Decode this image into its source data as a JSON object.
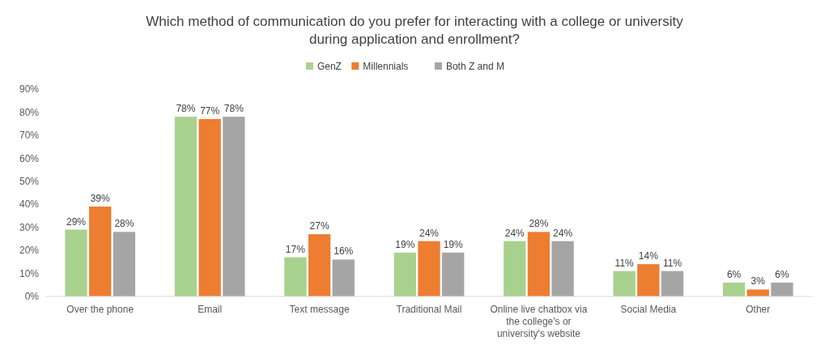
{
  "chart_data": {
    "type": "bar",
    "title": "Which method of communication do you prefer for interacting with a college or university during application and enrollment?",
    "categories": [
      "Over the phone",
      "Email",
      "Text message",
      "Traditional Mail",
      "Online live chatbox via the college's or university's website",
      "Social Media",
      "Other"
    ],
    "series": [
      {
        "name": "GenZ",
        "color": "#a9d18e",
        "values": [
          29,
          78,
          17,
          19,
          24,
          11,
          6
        ],
        "value_labels": [
          "29%",
          "78%",
          "17%",
          "19%",
          "24%",
          "11%",
          "6%"
        ]
      },
      {
        "name": "Millennials",
        "color": "#ed7d31",
        "values": [
          39,
          77,
          27,
          24,
          28,
          14,
          3
        ],
        "value_labels": [
          "39%",
          "77%",
          "27%",
          "24%",
          "28%",
          "14%",
          "3%"
        ]
      },
      {
        "name": "Both Z and M",
        "color": "#a5a5a5",
        "values": [
          28,
          78,
          16,
          19,
          24,
          11,
          6
        ],
        "value_labels": [
          "28%",
          "78%",
          "16%",
          "19%",
          "24%",
          "11%",
          "6%"
        ]
      }
    ],
    "ylim": [
      0,
      90
    ],
    "yticks": [
      {
        "value": 0,
        "label": "0%"
      },
      {
        "value": 10,
        "label": "10%"
      },
      {
        "value": 20,
        "label": "20%"
      },
      {
        "value": 30,
        "label": "30%"
      },
      {
        "value": 40,
        "label": "40%"
      },
      {
        "value": 50,
        "label": "50%"
      },
      {
        "value": 60,
        "label": "60%"
      },
      {
        "value": 70,
        "label": "70%"
      },
      {
        "value": 80,
        "label": "80%"
      },
      {
        "value": 90,
        "label": "90%"
      }
    ],
    "legend": "top"
  }
}
